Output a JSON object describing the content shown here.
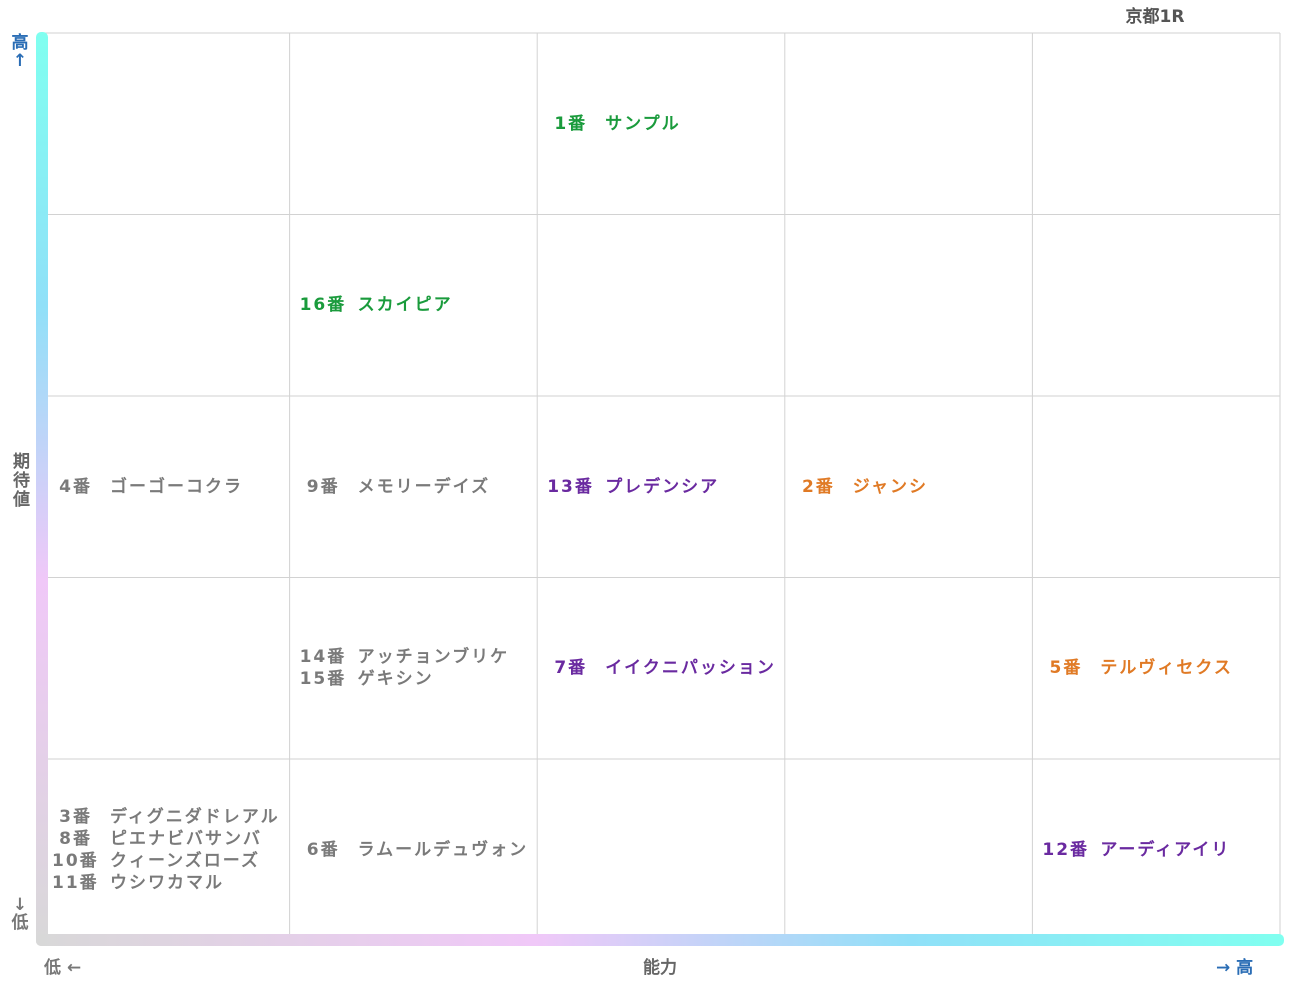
{
  "race_title": "京都1R",
  "chart_data": {
    "type": "table",
    "xlabel": "能力",
    "ylabel": "期待値",
    "x_low": "低 ←",
    "x_high": "→ 高",
    "y_high": "高",
    "y_low": "低",
    "grid": true,
    "columns": 5,
    "rows": 5,
    "colors": {
      "green": "#1a9b3c",
      "gray": "#7a7a7a",
      "purple": "#6a2aa0",
      "orange": "#e07a25",
      "axis_blue": "#2a6db5"
    },
    "entries": [
      {
        "number": "1番",
        "name": "サンプル",
        "col": 3,
        "row": 5,
        "color": "#1a9b3c"
      },
      {
        "number": "16番",
        "name": "スカイピア",
        "col": 2,
        "row": 4,
        "color": "#1a9b3c"
      },
      {
        "number": "4番",
        "name": "ゴーゴーコクラ",
        "col": 1,
        "row": 3,
        "color": "#7a7a7a"
      },
      {
        "number": "9番",
        "name": "メモリーデイズ",
        "col": 2,
        "row": 3,
        "color": "#7a7a7a"
      },
      {
        "number": "13番",
        "name": "プレデンシア",
        "col": 3,
        "row": 3,
        "color": "#6a2aa0"
      },
      {
        "number": "2番",
        "name": "ジャンシ",
        "col": 4,
        "row": 3,
        "color": "#e07a25"
      },
      {
        "number": "14番",
        "name": "アッチョンブリケ",
        "col": 2,
        "row": 2,
        "color": "#7a7a7a"
      },
      {
        "number": "15番",
        "name": "ゲキシン",
        "col": 2,
        "row": 2,
        "color": "#7a7a7a"
      },
      {
        "number": "7番",
        "name": "イイクニパッション",
        "col": 3,
        "row": 2,
        "color": "#6a2aa0"
      },
      {
        "number": "5番",
        "name": "テルヴィセクス",
        "col": 5,
        "row": 2,
        "color": "#e07a25"
      },
      {
        "number": "3番",
        "name": "ディグニダドレアル",
        "col": 1,
        "row": 1,
        "color": "#7a7a7a"
      },
      {
        "number": "8番",
        "name": "ピエナビバサンバ",
        "col": 1,
        "row": 1,
        "color": "#7a7a7a"
      },
      {
        "number": "10番",
        "name": "クィーンズローズ",
        "col": 1,
        "row": 1,
        "color": "#7a7a7a"
      },
      {
        "number": "11番",
        "name": "ウシワカマル",
        "col": 1,
        "row": 1,
        "color": "#7a7a7a"
      },
      {
        "number": "6番",
        "name": "ラムールデュヴォン",
        "col": 2,
        "row": 1,
        "color": "#7a7a7a"
      },
      {
        "number": "12番",
        "name": "アーディアイリ",
        "col": 5,
        "row": 1,
        "color": "#6a2aa0"
      }
    ]
  }
}
